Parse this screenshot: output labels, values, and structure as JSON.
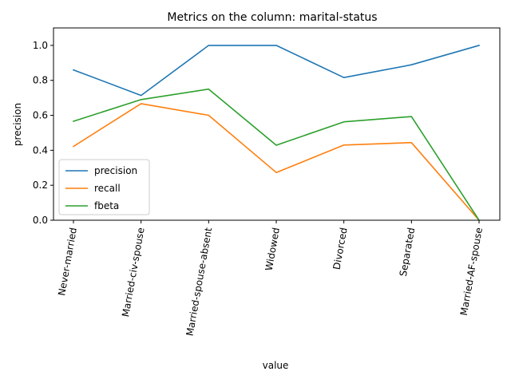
{
  "chart_data": {
    "type": "line",
    "title": "Metrics on the column: marital-status",
    "xlabel": "value",
    "ylabel": "precision",
    "ylim": [
      0,
      1.1
    ],
    "yticks": [
      0.0,
      0.2,
      0.4,
      0.6,
      0.8,
      1.0
    ],
    "ytick_labels": [
      "0.0",
      "0.2",
      "0.4",
      "0.6",
      "0.8",
      "1.0"
    ],
    "grid": false,
    "legend_position": "lower-left",
    "categories": [
      "Never-married",
      "Married-civ-spouse",
      "Married-spouse-absent",
      "Widowed",
      "Divorced",
      "Separated",
      "Married-AF-spouse"
    ],
    "series": [
      {
        "name": "precision",
        "color": "#1f77b4",
        "values": [
          0.86,
          0.714,
          1.0,
          1.0,
          0.816,
          0.889,
          1.0
        ]
      },
      {
        "name": "recall",
        "color": "#ff7f0e",
        "values": [
          0.422,
          0.667,
          0.6,
          0.273,
          0.43,
          0.444,
          0.0
        ]
      },
      {
        "name": "fbeta",
        "color": "#2ca02c",
        "values": [
          0.566,
          0.69,
          0.75,
          0.429,
          0.563,
          0.593,
          0.0
        ]
      }
    ]
  }
}
